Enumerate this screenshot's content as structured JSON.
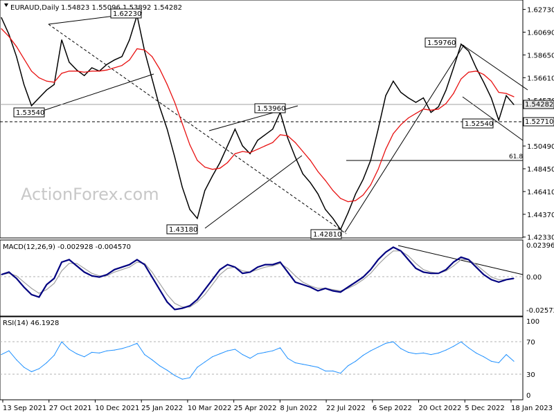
{
  "chart_data": [
    {
      "type": "line",
      "panel": "price",
      "header": {
        "symbol": "EURAUD,Daily",
        "ohlc": "1.54823 1.55096 1.53892 1.54282"
      },
      "series": [
        {
          "name": "EURAUD,Daily",
          "color": "#000000",
          "x": [
            "2021-09-13",
            "2021-09-20",
            "2021-09-27",
            "2021-10-04",
            "2021-10-11",
            "2021-10-18",
            "2021-10-27",
            "2021-11-03",
            "2021-11-10",
            "2021-11-17",
            "2021-11-24",
            "2021-12-01",
            "2021-12-10",
            "2021-12-17",
            "2021-12-24",
            "2021-12-31",
            "2022-01-07",
            "2022-01-14",
            "2022-01-25",
            "2022-02-01",
            "2022-02-08",
            "2022-02-15",
            "2022-02-22",
            "2022-03-01",
            "2022-03-10",
            "2022-03-17",
            "2022-03-24",
            "2022-03-31",
            "2022-04-07",
            "2022-04-14",
            "2022-04-25",
            "2022-05-02",
            "2022-05-09",
            "2022-05-16",
            "2022-05-23",
            "2022-05-30",
            "2022-06-08",
            "2022-06-15",
            "2022-06-22",
            "2022-06-29",
            "2022-07-06",
            "2022-07-13",
            "2022-07-22",
            "2022-07-29",
            "2022-08-05",
            "2022-08-12",
            "2022-08-19",
            "2022-08-26",
            "2022-09-06",
            "2022-09-13",
            "2022-09-20",
            "2022-09-27",
            "2022-10-04",
            "2022-10-11",
            "2022-10-20",
            "2022-10-27",
            "2022-11-03",
            "2022-11-10",
            "2022-11-17",
            "2022-11-24",
            "2022-12-05",
            "2022-12-12",
            "2022-12-19",
            "2022-12-26",
            "2023-01-02",
            "2023-01-09",
            "2023-01-18",
            "2023-01-25",
            "2023-01-31"
          ],
          "values": [
            1.62,
            1.605,
            1.585,
            1.56,
            1.541,
            1.548,
            1.555,
            1.56,
            1.6,
            1.58,
            1.573,
            1.568,
            1.575,
            1.572,
            1.578,
            1.582,
            1.585,
            1.6,
            1.622,
            1.59,
            1.565,
            1.54,
            1.52,
            1.495,
            1.468,
            1.448,
            1.44,
            1.465,
            1.478,
            1.49,
            1.505,
            1.52,
            1.505,
            1.498,
            1.51,
            1.515,
            1.52,
            1.535,
            1.512,
            1.495,
            1.48,
            1.472,
            1.462,
            1.448,
            1.44,
            1.43,
            1.445,
            1.462,
            1.475,
            1.492,
            1.52,
            1.55,
            1.563,
            1.553,
            1.548,
            1.544,
            1.548,
            1.535,
            1.54,
            1.555,
            1.575,
            1.596,
            1.59,
            1.575,
            1.562,
            1.548,
            1.528,
            1.55,
            1.542
          ]
        },
        {
          "name": "EMA",
          "color": "#e81010",
          "values": [
            1.61,
            1.603,
            1.594,
            1.583,
            1.572,
            1.566,
            1.563,
            1.562,
            1.57,
            1.572,
            1.572,
            1.571,
            1.572,
            1.572,
            1.573,
            1.575,
            1.577,
            1.582,
            1.592,
            1.591,
            1.585,
            1.574,
            1.56,
            1.544,
            1.525,
            1.506,
            1.492,
            1.486,
            1.484,
            1.485,
            1.49,
            1.498,
            1.5,
            1.499,
            1.502,
            1.505,
            1.508,
            1.515,
            1.514,
            1.508,
            1.5,
            1.492,
            1.482,
            1.474,
            1.465,
            1.458,
            1.455,
            1.456,
            1.461,
            1.47,
            1.484,
            1.502,
            1.516,
            1.524,
            1.53,
            1.534,
            1.538,
            1.537,
            1.538,
            1.543,
            1.552,
            1.565,
            1.571,
            1.572,
            1.569,
            1.563,
            1.553,
            1.552,
            1.549
          ]
        }
      ],
      "ylim": [
        1.425,
        1.632
      ],
      "y_ticks": [
        "1.62730",
        "1.60690",
        "1.58650",
        "1.56610",
        "1.54570",
        "1.52530",
        "1.50490",
        "1.48450",
        "1.46410",
        "1.44370",
        "1.42330"
      ],
      "x_ticks": [
        "13 Sep 2021",
        "27 Oct 2021",
        "10 Dec 2021",
        "25 Jan 2022",
        "10 Mar 2022",
        "25 Apr 2022",
        "8 Jun 2022",
        "22 Jul 2022",
        "6 Sep 2022",
        "20 Oct 2022",
        "5 Dec 2022",
        "18 Jan 2023"
      ],
      "price_labels": [
        {
          "text": "1.53540",
          "value": 1.5354
        },
        {
          "text": "1.62230",
          "value": 1.6223
        },
        {
          "text": "1.43180",
          "value": 1.4318
        },
        {
          "text": "1.53960",
          "value": 1.5396
        },
        {
          "text": "1.42810",
          "value": 1.4281
        },
        {
          "text": "1.59760",
          "value": 1.5976
        },
        {
          "text": "1.52540",
          "value": 1.5254
        }
      ],
      "current_price": "1.54282",
      "support_level": "1.52710",
      "fib_label": "61.8",
      "fib_level": 1.4935,
      "watermark": "ActionForex.com",
      "grid": false
    },
    {
      "type": "line",
      "panel": "macd",
      "header": "MACD(12,26,9) -0.002928 -0.004570",
      "series": [
        {
          "name": "MACD",
          "color": "#000080",
          "values": [
            0.0,
            0.002,
            -0.003,
            -0.01,
            -0.016,
            -0.018,
            -0.008,
            -0.003,
            0.01,
            0.012,
            0.007,
            0.002,
            -0.001,
            -0.002,
            0.0,
            0.004,
            0.006,
            0.008,
            0.012,
            0.008,
            -0.002,
            -0.012,
            -0.022,
            -0.028,
            -0.027,
            -0.025,
            -0.02,
            -0.012,
            -0.004,
            0.004,
            0.008,
            0.006,
            0.001,
            0.002,
            0.006,
            0.008,
            0.008,
            0.01,
            0.002,
            -0.006,
            -0.008,
            -0.01,
            -0.013,
            -0.011,
            -0.013,
            -0.014,
            -0.01,
            -0.006,
            -0.002,
            0.004,
            0.012,
            0.018,
            0.022,
            0.019,
            0.012,
            0.005,
            0.002,
            0.001,
            0.001,
            0.004,
            0.01,
            0.014,
            0.012,
            0.006,
            0.0,
            -0.004,
            -0.006,
            -0.004,
            -0.003
          ]
        },
        {
          "name": "Signal",
          "color": "#a0a0a0",
          "values": [
            0.0,
            0.001,
            -0.001,
            -0.006,
            -0.011,
            -0.015,
            -0.012,
            -0.007,
            0.003,
            0.009,
            0.009,
            0.005,
            0.001,
            -0.001,
            -0.001,
            0.002,
            0.004,
            0.006,
            0.01,
            0.009,
            0.002,
            -0.007,
            -0.016,
            -0.023,
            -0.026,
            -0.026,
            -0.022,
            -0.016,
            -0.008,
            0.0,
            0.005,
            0.006,
            0.003,
            0.002,
            0.004,
            0.006,
            0.007,
            0.009,
            0.005,
            -0.001,
            -0.006,
            -0.009,
            -0.011,
            -0.011,
            -0.012,
            -0.013,
            -0.011,
            -0.008,
            -0.004,
            0.001,
            0.008,
            0.014,
            0.019,
            0.019,
            0.015,
            0.009,
            0.004,
            0.002,
            0.001,
            0.003,
            0.007,
            0.012,
            0.012,
            0.008,
            0.003,
            -0.002,
            -0.004,
            -0.004,
            -0.003
          ]
        }
      ],
      "ylim": [
        -0.0305,
        0.025
      ],
      "y_ticks": [
        "0.023963",
        "0.00",
        "-0.025726"
      ],
      "grid": false
    },
    {
      "type": "line",
      "panel": "rsi",
      "header": "RSI(14) 46.1928",
      "series": [
        {
          "name": "RSI",
          "color": "#1e90ff",
          "values": [
            55,
            60,
            48,
            38,
            32,
            36,
            44,
            54,
            72,
            62,
            56,
            52,
            58,
            57,
            60,
            61,
            63,
            66,
            70,
            55,
            48,
            40,
            34,
            27,
            22,
            24,
            38,
            45,
            52,
            56,
            60,
            62,
            55,
            50,
            56,
            58,
            60,
            64,
            50,
            44,
            42,
            40,
            38,
            33,
            33,
            30,
            40,
            46,
            54,
            60,
            65,
            70,
            72,
            63,
            58,
            56,
            57,
            55,
            57,
            61,
            66,
            72,
            64,
            57,
            52,
            46,
            44,
            55,
            46
          ]
        }
      ],
      "ylim": [
        0,
        100
      ],
      "y_ticks": [
        "100",
        "70",
        "50",
        "30",
        "0"
      ],
      "grid": false
    }
  ]
}
